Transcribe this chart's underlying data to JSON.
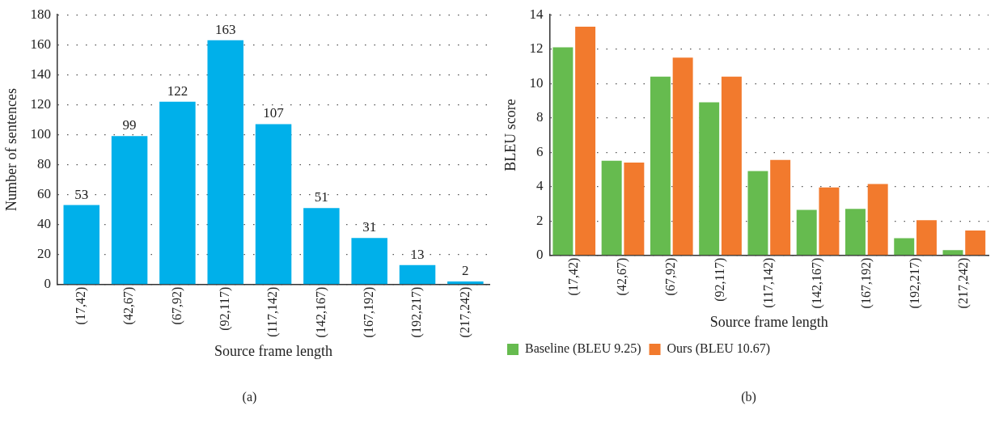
{
  "chart_data": [
    {
      "type": "bar",
      "categories": [
        "(17,42)",
        "(42,67)",
        "(67,92)",
        "(92,117)",
        "(117,142)",
        "(142,167)",
        "(167,192)",
        "(192,217)",
        "(217,242)"
      ],
      "values": [
        53,
        99,
        122,
        163,
        107,
        51,
        31,
        13,
        2
      ],
      "color": "#00b0ea",
      "xlabel": "Source frame length",
      "ylabel": "Number of sentences",
      "ylim": [
        0,
        180
      ],
      "yticks": [
        0,
        20,
        40,
        60,
        80,
        100,
        120,
        140,
        160,
        180
      ],
      "grid": "y",
      "data_labels": true,
      "annotations": [
        "(a)"
      ]
    },
    {
      "type": "bar",
      "categories": [
        "(17,42)",
        "(42,67)",
        "(67,92)",
        "(92,117)",
        "(117,142)",
        "(142,167)",
        "(167,192)",
        "(192,217)",
        "(217,242)"
      ],
      "series": [
        {
          "name": "Baseline (BLEU 9.25)",
          "color": "#66bb4f",
          "values": [
            12.1,
            5.5,
            10.4,
            8.9,
            4.9,
            2.65,
            2.7,
            1.0,
            0.3
          ]
        },
        {
          "name": "Ours (BLEU 10.67)",
          "color": "#f27a2d",
          "values": [
            13.3,
            5.4,
            11.5,
            10.4,
            5.55,
            3.95,
            4.15,
            2.05,
            1.45
          ]
        }
      ],
      "xlabel": "Source frame length",
      "ylabel": "BLEU score",
      "ylim": [
        0,
        14
      ],
      "yticks": [
        0,
        2,
        4,
        6,
        8,
        10,
        12,
        14
      ],
      "grid": "y",
      "legend": "bottom left",
      "annotations": [
        "(b)"
      ]
    }
  ]
}
